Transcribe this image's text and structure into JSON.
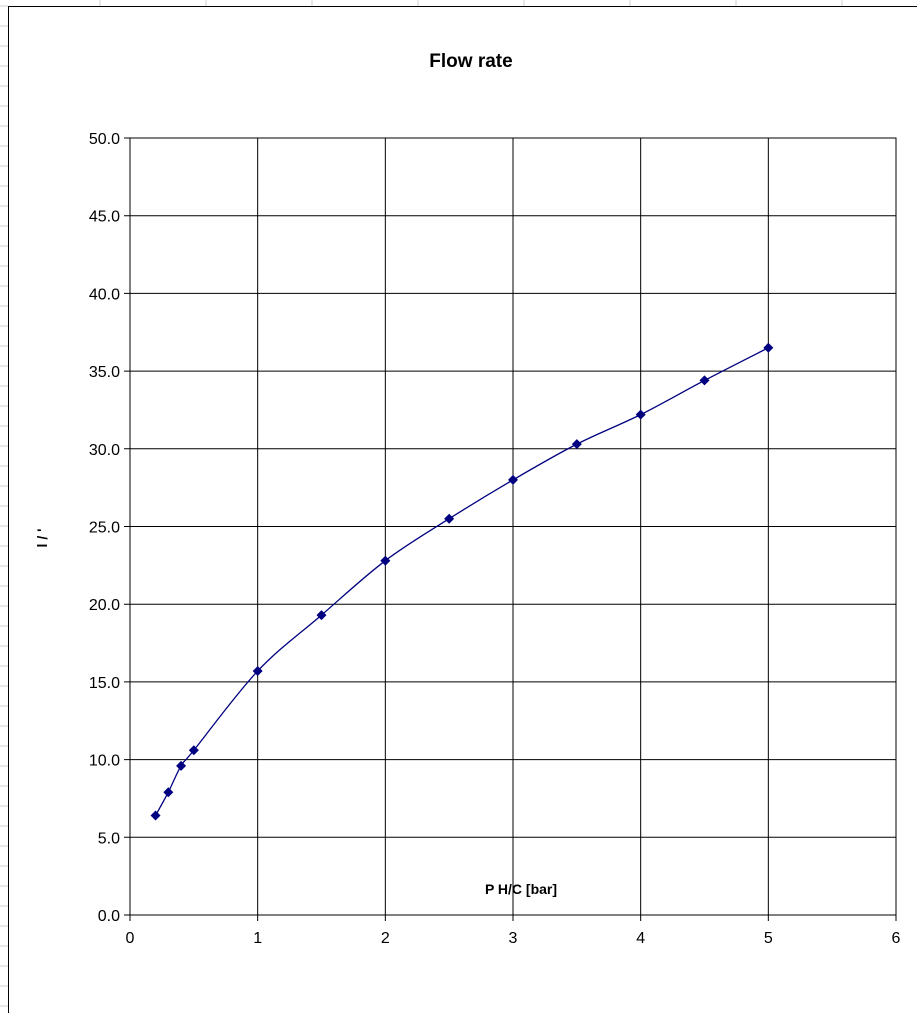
{
  "chart_data": {
    "type": "scatter",
    "title": "Flow rate",
    "xlabel": "P H/C [bar]",
    "ylabel": "l / '",
    "xlim": [
      0,
      6
    ],
    "ylim": [
      0,
      50
    ],
    "x_ticks": [
      "0",
      "1",
      "2",
      "3",
      "4",
      "5",
      "6"
    ],
    "y_ticks": [
      "0.0",
      "5.0",
      "10.0",
      "15.0",
      "20.0",
      "25.0",
      "30.0",
      "35.0",
      "40.0",
      "45.0",
      "50.0"
    ],
    "grid": true,
    "smoothed_line": true,
    "series": [
      {
        "x": [
          0.2,
          0.3,
          0.4,
          0.5,
          1,
          1.5,
          2,
          2.5,
          3,
          3.5,
          4,
          4.5,
          5
        ],
        "y": [
          6.4,
          7.9,
          9.6,
          10.6,
          15.7,
          19.3,
          22.8,
          25.5,
          28.0,
          30.3,
          32.2,
          34.4,
          36.5
        ],
        "color": "#000080",
        "marker": "diamond"
      }
    ]
  }
}
